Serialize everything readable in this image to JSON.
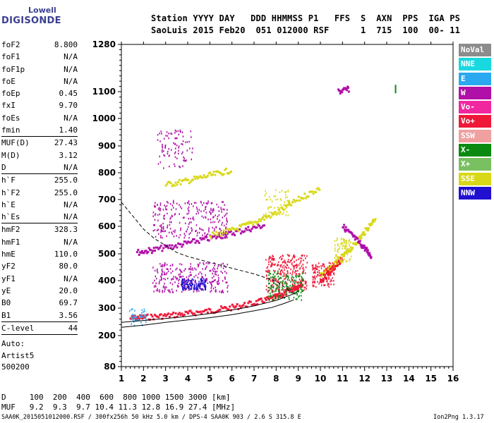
{
  "logo": {
    "top": "Lowell",
    "bottom": "DIGISONDE"
  },
  "header": {
    "line1": "Station YYYY DAY   DDD HHMMSS P1   FFS  S  AXN  PPS  IGA PS",
    "line2": "SaoLuis 2015 Feb20  051 012000 RSF      1  715  100  00- 11"
  },
  "params": [
    {
      "label": "foF2",
      "value": "8.800"
    },
    {
      "label": "foF1",
      "value": "N/A"
    },
    {
      "label": "foF1p",
      "value": "N/A"
    },
    {
      "label": "foE",
      "value": "N/A"
    },
    {
      "label": "foEp",
      "value": "0.45"
    },
    {
      "label": "fxI",
      "value": "9.70"
    },
    {
      "label": "foEs",
      "value": "N/A"
    },
    {
      "label": "fmin",
      "value": "1.40"
    },
    {
      "label": "MUF(D)",
      "value": "27.43"
    },
    {
      "label": "M(D)",
      "value": "3.12"
    },
    {
      "label": "D",
      "value": "N/A"
    },
    {
      "label": "h`F",
      "value": "255.0"
    },
    {
      "label": "h`F2",
      "value": "255.0"
    },
    {
      "label": "h`E",
      "value": "N/A"
    },
    {
      "label": "h`Es",
      "value": "N/A"
    },
    {
      "label": "hmF2",
      "value": "328.3"
    },
    {
      "label": "hmF1",
      "value": "N/A"
    },
    {
      "label": "hmE",
      "value": "110.0"
    },
    {
      "label": "yF2",
      "value": "80.0"
    },
    {
      "label": "yF1",
      "value": "N/A"
    },
    {
      "label": "yE",
      "value": "20.0"
    },
    {
      "label": "B0",
      "value": "69.7"
    },
    {
      "label": "B1",
      "value": "3.56"
    },
    {
      "label": "C-level",
      "value": "44"
    }
  ],
  "auto": {
    "line1": "Auto:",
    "line2": "Artist5",
    "line3": "500200"
  },
  "legend": [
    {
      "label": "NoVal",
      "color": "#8c8c8c"
    },
    {
      "label": "NNE",
      "color": "#18d8e0"
    },
    {
      "label": "E",
      "color": "#2aa8f0"
    },
    {
      "label": "W",
      "color": "#b010a8"
    },
    {
      "label": "Vo-",
      "color": "#f028a0"
    },
    {
      "label": "Vo+",
      "color": "#f01838"
    },
    {
      "label": "SSW",
      "color": "#f0a0a0"
    },
    {
      "label": "X-",
      "color": "#0a8a10"
    },
    {
      "label": "X+",
      "color": "#78c060"
    },
    {
      "label": "SSE",
      "color": "#d8d818"
    },
    {
      "label": "NNW",
      "color": "#2010d0"
    }
  ],
  "bottom": {
    "d_line": "D     100  200  400  600  800 1000 1500 3000 [km]",
    "muf_line": "MUF   9.2  9.3  9.7 10.4 11.3 12.8 16.9 27.4 [MHz]"
  },
  "footer": {
    "left": "SAA0K_2015051012000.RSF / 300fx256h 50 kHz 5.0 km / DPS-4 SAA0K 903 / 2.6 S 315.8 E",
    "right": "Ion2Png 1.3.17"
  },
  "chart_data": {
    "type": "scatter",
    "xlim": [
      1,
      16
    ],
    "ylim": [
      80,
      1280
    ],
    "x_ticks": [
      1,
      2,
      3,
      4,
      5,
      6,
      7,
      8,
      9,
      10,
      11,
      12,
      13,
      14,
      15,
      16
    ],
    "y_ticks": [
      80,
      200,
      300,
      400,
      500,
      600,
      700,
      800,
      900,
      1000,
      1100,
      1280
    ],
    "grid": false,
    "profile_curve": [
      [
        1.0,
        230
      ],
      [
        2,
        238
      ],
      [
        3,
        248
      ],
      [
        4,
        257
      ],
      [
        5,
        265
      ],
      [
        6,
        276
      ],
      [
        7,
        290
      ],
      [
        7.8,
        302
      ],
      [
        8.3,
        315
      ],
      [
        8.8,
        330
      ]
    ],
    "trace_curve": [
      [
        1.0,
        248
      ],
      [
        2,
        255
      ],
      [
        3,
        262
      ],
      [
        4,
        270
      ],
      [
        5,
        280
      ],
      [
        6,
        293
      ],
      [
        7,
        308
      ],
      [
        8,
        328
      ],
      [
        8.8,
        352
      ],
      [
        9.0,
        362
      ]
    ],
    "dashed_curve": [
      [
        1.0,
        690
      ],
      [
        1.5,
        640
      ],
      [
        2,
        590
      ],
      [
        2.5,
        555
      ],
      [
        3,
        530
      ],
      [
        3.5,
        505
      ],
      [
        4,
        490
      ],
      [
        5,
        468
      ],
      [
        6,
        446
      ],
      [
        7,
        425
      ],
      [
        8,
        398
      ],
      [
        8.8,
        352
      ]
    ],
    "traces": [
      {
        "series": "Vo+",
        "points": [
          [
            1.4,
            262
          ],
          [
            2,
            266
          ],
          [
            3,
            272
          ],
          [
            4,
            280
          ],
          [
            5,
            290
          ],
          [
            6,
            302
          ],
          [
            7,
            318
          ],
          [
            7.8,
            335
          ],
          [
            8.3,
            350
          ],
          [
            8.8,
            372
          ],
          [
            9.2,
            390
          ]
        ]
      },
      {
        "series": "W",
        "points": [
          [
            1.7,
            505
          ],
          [
            2.5,
            515
          ],
          [
            3.5,
            530
          ],
          [
            4.5,
            548
          ],
          [
            5.5,
            565
          ],
          [
            6.5,
            585
          ],
          [
            7.5,
            605
          ]
        ]
      },
      {
        "series": "SSE",
        "points": [
          [
            3,
            755
          ],
          [
            4,
            770
          ],
          [
            5,
            790
          ],
          [
            6,
            810
          ]
        ]
      },
      {
        "series": "SSE",
        "points": [
          [
            5,
            565
          ],
          [
            6,
            585
          ],
          [
            7,
            615
          ],
          [
            8,
            650
          ],
          [
            9,
            700
          ],
          [
            10,
            745
          ]
        ]
      },
      {
        "series": "SSE",
        "points": [
          [
            10,
            420
          ],
          [
            10.5,
            450
          ],
          [
            11,
            490
          ],
          [
            11.5,
            530
          ],
          [
            12,
            580
          ],
          [
            12.5,
            635
          ]
        ]
      },
      {
        "series": "W",
        "points": [
          [
            11,
            600
          ],
          [
            11.5,
            560
          ],
          [
            12,
            520
          ],
          [
            12.3,
            490
          ]
        ]
      },
      {
        "series": "Vo+",
        "points": [
          [
            10,
            400
          ],
          [
            10.5,
            440
          ],
          [
            11,
            480
          ]
        ]
      },
      {
        "series": "W",
        "points": [
          [
            10.8,
            1100
          ],
          [
            11.3,
            1110
          ]
        ]
      },
      {
        "series": "X-",
        "points": [
          [
            13.4,
            1110
          ]
        ]
      }
    ]
  }
}
